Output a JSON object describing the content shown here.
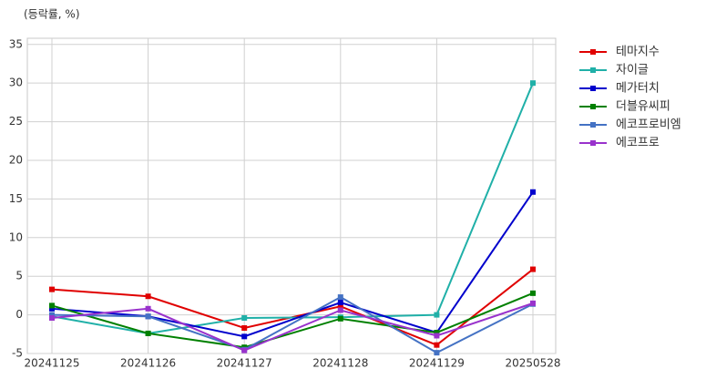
{
  "chart_data": {
    "type": "line",
    "unit_label": "(등락률, %)",
    "categories": [
      "20241125",
      "20241126",
      "20241127",
      "20241128",
      "20241129",
      "20250528"
    ],
    "series": [
      {
        "name": "테마지수",
        "color": "#e00000",
        "values": [
          3.3,
          2.4,
          -1.7,
          1.1,
          -3.9,
          5.9
        ]
      },
      {
        "name": "자이글",
        "color": "#20b0a8",
        "values": [
          -0.2,
          -2.4,
          -0.4,
          -0.3,
          0.0,
          30.0
        ]
      },
      {
        "name": "메가터치",
        "color": "#0000cc",
        "values": [
          0.8,
          -0.2,
          -2.8,
          1.6,
          -2.3,
          15.9
        ]
      },
      {
        "name": "더블유씨피",
        "color": "#008000",
        "values": [
          1.2,
          -2.4,
          -4.2,
          -0.5,
          -2.3,
          2.8
        ]
      },
      {
        "name": "에코프로비엠",
        "color": "#4472c4",
        "values": [
          0.0,
          -0.2,
          -4.5,
          2.3,
          -4.9,
          1.4
        ]
      },
      {
        "name": "에코프로",
        "color": "#9932cc",
        "values": [
          -0.4,
          0.8,
          -4.6,
          0.6,
          -2.7,
          1.5
        ]
      }
    ],
    "ylim": [
      -5,
      35.8
    ],
    "yticks": [
      -5,
      0,
      5,
      10,
      15,
      20,
      25,
      30,
      35
    ],
    "grid": true,
    "legend": "right"
  }
}
